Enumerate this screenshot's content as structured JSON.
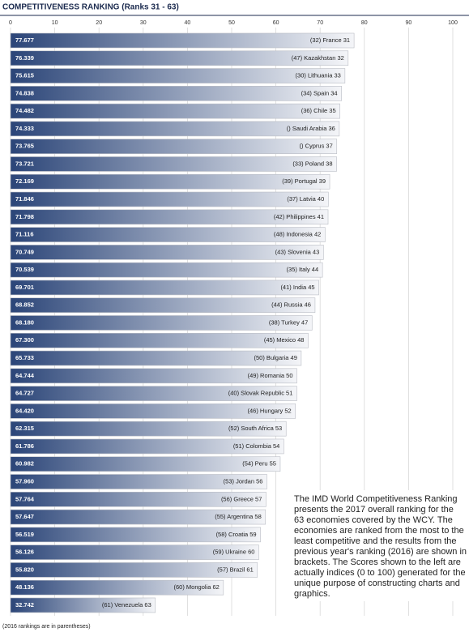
{
  "chart_data": {
    "type": "bar",
    "orientation": "horizontal",
    "title": "COMPETITIVENESS RANKING (Ranks 31 - 63)",
    "categories": [
      "(32) France 31",
      "(47) Kazakhstan 32",
      "(30) Lithuania 33",
      "(34) Spain 34",
      "(36) Chile 35",
      "() Saudi Arabia 36",
      "() Cyprus 37",
      "(33) Poland 38",
      "(39) Portugal 39",
      "(37) Latvia 40",
      "(42) Philippines 41",
      "(48) Indonesia 42",
      "(43) Slovenia 43",
      "(35) Italy 44",
      "(41) India 45",
      "(44) Russia 46",
      "(38) Turkey 47",
      "(45) Mexico 48",
      "(50) Bulgaria 49",
      "(49) Romania 50",
      "(40) Slovak Republic 51",
      "(46) Hungary 52",
      "(52) South Africa 53",
      "(51) Colombia 54",
      "(54) Peru 55",
      "(53) Jordan 56",
      "(56) Greece 57",
      "(55) Argentina 58",
      "(58) Croatia 59",
      "(59) Ukraine 60",
      "(57) Brazil 61",
      "(60) Mongolia 62",
      "(61) Venezuela 63"
    ],
    "values": [
      77.677,
      76.339,
      75.615,
      74.838,
      74.482,
      74.333,
      73.765,
      73.721,
      72.169,
      71.846,
      71.798,
      71.116,
      70.749,
      70.539,
      69.701,
      68.852,
      68.18,
      67.3,
      65.733,
      64.744,
      64.727,
      64.42,
      62.315,
      61.786,
      60.982,
      57.96,
      57.764,
      57.647,
      56.519,
      56.126,
      55.82,
      48.136,
      32.742
    ],
    "value_labels": [
      "77.677",
      "76.339",
      "75.615",
      "74.838",
      "74.482",
      "74.333",
      "73.765",
      "73.721",
      "72.169",
      "71.846",
      "71.798",
      "71.116",
      "70.749",
      "70.539",
      "69.701",
      "68.852",
      "68.180",
      "67.300",
      "65.733",
      "64.744",
      "64.727",
      "64.420",
      "62.315",
      "61.786",
      "60.982",
      "57.960",
      "57.764",
      "57.647",
      "56.519",
      "56.126",
      "55.820",
      "48.136",
      "32.742"
    ],
    "color": "#2b4578",
    "xlim": [
      0,
      100
    ],
    "xticks": [
      0,
      10,
      20,
      30,
      40,
      50,
      60,
      70,
      80,
      90,
      100
    ],
    "grid": true,
    "footnote": "(2016 rankings are in parentheses)",
    "note": [
      "The IMD World Competitiveness Ranking",
      "presents the 2017 overall ranking for the",
      "63 economies covered by the WCY. The",
      "economies are ranked from the most to the",
      "least competitive and the results from the",
      "previous year's ranking (2016) are shown in",
      "brackets. The Scores shown to the left are",
      "actually indices (0 to 100) generated for the",
      "unique purpose of constructing charts and",
      "graphics."
    ]
  }
}
